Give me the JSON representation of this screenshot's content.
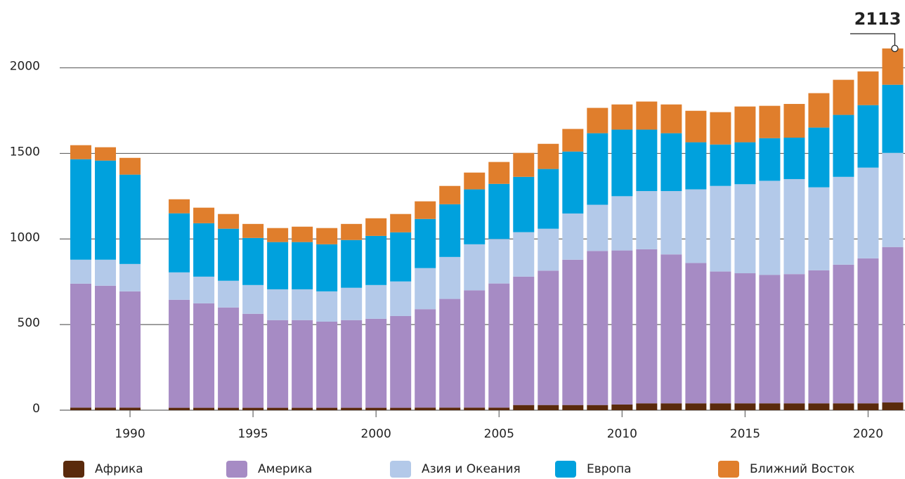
{
  "chart_data": {
    "type": "stacked_bar",
    "x": [
      1988,
      1989,
      1990,
      1992,
      1993,
      1994,
      1995,
      1996,
      1997,
      1998,
      1999,
      2000,
      2001,
      2002,
      2003,
      2004,
      2005,
      2006,
      2007,
      2008,
      2009,
      2010,
      2011,
      2012,
      2013,
      2014,
      2015,
      2016,
      2017,
      2018,
      2019,
      2020,
      2021
    ],
    "xlim": [
      1987.2,
      2021.5
    ],
    "xticks": [
      1990,
      1995,
      2000,
      2005,
      2010,
      2015,
      2020
    ],
    "ylim": [
      0,
      2150
    ],
    "yticks": [
      0,
      500,
      1000,
      1500,
      2000
    ],
    "grid": true,
    "series": [
      {
        "name": "Африка",
        "color": "#5a2a0c",
        "values": [
          15,
          15,
          15,
          14,
          14,
          14,
          14,
          14,
          14,
          14,
          14,
          14,
          14,
          15,
          15,
          15,
          15,
          30,
          30,
          30,
          30,
          33,
          40,
          40,
          40,
          40,
          40,
          40,
          40,
          40,
          40,
          40,
          45
        ]
      },
      {
        "name": "Америка",
        "color": "#a68bc4",
        "values": [
          724,
          712,
          679,
          631,
          610,
          586,
          549,
          512,
          512,
          503,
          512,
          520,
          536,
          575,
          635,
          685,
          725,
          750,
          785,
          849,
          900,
          900,
          900,
          870,
          820,
          770,
          760,
          750,
          755,
          777,
          810,
          847,
          908
        ]
      },
      {
        "name": "Азия и Океания",
        "color": "#b3c9e9",
        "values": [
          140,
          152,
          160,
          160,
          156,
          156,
          168,
          180,
          180,
          177,
          189,
          197,
          202,
          240,
          245,
          269,
          260,
          260,
          245,
          270,
          270,
          317,
          340,
          370,
          430,
          500,
          520,
          550,
          555,
          485,
          513,
          530,
          550
        ]
      },
      {
        "name": "Европа",
        "color": "#00a1dd",
        "values": [
          587,
          579,
          522,
          345,
          312,
          304,
          275,
          276,
          276,
          275,
          279,
          287,
          287,
          287,
          308,
          321,
          322,
          323,
          349,
          362,
          418,
          389,
          359,
          338,
          275,
          242,
          245,
          249,
          242,
          349,
          362,
          365,
          398
        ]
      },
      {
        "name": "Ближний Восток",
        "color": "#e07e2c",
        "values": [
          82,
          78,
          98,
          82,
          91,
          86,
          82,
          82,
          90,
          95,
          94,
          103,
          107,
          103,
          107,
          98,
          128,
          140,
          147,
          132,
          148,
          147,
          164,
          168,
          184,
          189,
          209,
          189,
          197,
          201,
          205,
          197,
          212
        ]
      }
    ],
    "annotations": [
      {
        "text": "2113"
      }
    ]
  }
}
